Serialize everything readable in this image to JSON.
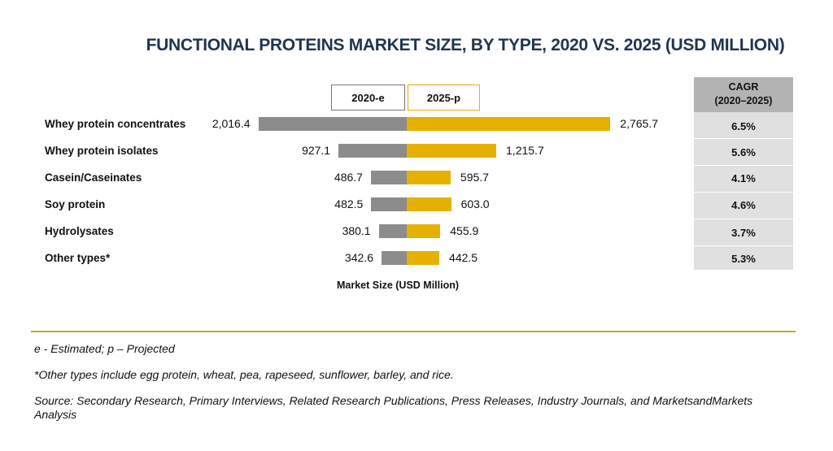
{
  "chart_data": {
    "type": "bar",
    "orientation": "horizontal-butterfly",
    "title": "FUNCTIONAL PROTEINS MARKET SIZE, BY TYPE, 2020 VS. 2025 (USD MILLION)",
    "xlabel": "Market Size (USD Million)",
    "categories": [
      "Whey protein concentrates",
      "Whey protein isolates",
      "Casein/Caseinates",
      "Soy protein",
      "Hydrolysates",
      "Other types*"
    ],
    "series": [
      {
        "name": "2020-e",
        "color": "#8c8c8c",
        "values": [
          2016.4,
          927.1,
          486.7,
          482.5,
          380.1,
          342.6
        ],
        "labels": [
          "2,016.4",
          "927.1",
          "486.7",
          "482.5",
          "380.1",
          "342.6"
        ]
      },
      {
        "name": "2025-p",
        "color": "#e6b000",
        "values": [
          2765.7,
          1215.7,
          595.7,
          603.0,
          455.9,
          442.5
        ],
        "labels": [
          "2,765.7",
          "1,215.7",
          "595.7",
          "603.0",
          "455.9",
          "442.5"
        ]
      }
    ],
    "cagr": {
      "header_line1": "CAGR",
      "header_line2": "(2020–2025)",
      "values": [
        "6.5%",
        "5.6%",
        "4.1%",
        "4.6%",
        "3.7%",
        "5.3%"
      ]
    },
    "grid": false,
    "legend": "top-center"
  },
  "footnotes": {
    "legend_note": "e - Estimated; p – Projected",
    "other_note": "*Other types include egg protein, wheat, pea, rapeseed, sunflower, barley, and rice.",
    "source": "Source: Secondary Research, Primary Interviews, Related Research Publications, Press Releases, Industry Journals, and MarketsandMarkets Analysis"
  }
}
